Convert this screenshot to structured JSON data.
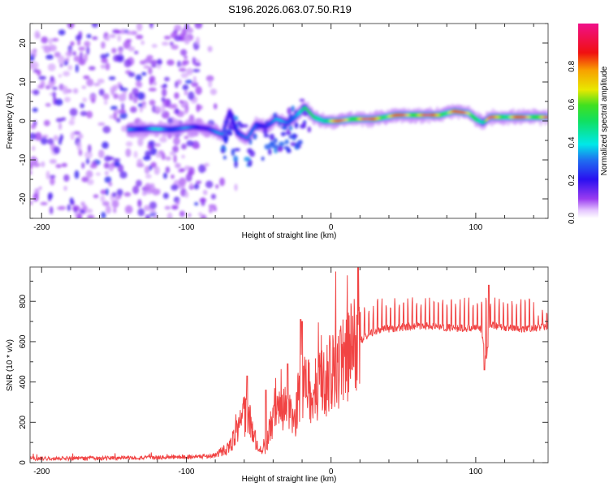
{
  "title": "S196.2026.063.07.50.R19",
  "chart_data": [
    {
      "type": "heatmap",
      "name": "spectrogram",
      "xlabel": "Height of straight line (km)",
      "ylabel": "Frequency (Hz)",
      "xlim": [
        -208,
        150
      ],
      "ylim": [
        -25,
        25
      ],
      "xticks": [
        -200,
        -100,
        0,
        100
      ],
      "xtick_labels": [
        "-200",
        "-100",
        "0",
        "100"
      ],
      "yticks": [
        -20,
        -10,
        0,
        10,
        20
      ],
      "ytick_labels": [
        "-20",
        "-10",
        "0",
        "10",
        "20"
      ],
      "colorbar": {
        "label": "Normalized spectral amplitude",
        "range": [
          0,
          1
        ],
        "ticks": [
          0.0,
          0.2,
          0.4,
          0.6,
          0.8
        ],
        "tick_labels": [
          "0.0",
          "0.2",
          "0.4",
          "0.6",
          "0.8"
        ],
        "colormap": "rainbow (white-purple-blue-cyan-green-yellow-red-magenta)"
      },
      "ridge": {
        "description": "dominant carrier frequency vs height",
        "points": [
          [
            -140,
            -2.2,
            0.35
          ],
          [
            -125,
            -2.0,
            0.4
          ],
          [
            -110,
            -2.2,
            0.4
          ],
          [
            -95,
            -1.5,
            0.3
          ],
          [
            -85,
            -2.0,
            0.3
          ],
          [
            -75,
            -3.5,
            0.35
          ],
          [
            -70,
            2.5,
            0.3
          ],
          [
            -65,
            -3.0,
            0.35
          ],
          [
            -58,
            -4.5,
            0.3
          ],
          [
            -52,
            -1.0,
            0.35
          ],
          [
            -45,
            -1.5,
            0.35
          ],
          [
            -38,
            0.5,
            0.35
          ],
          [
            -30,
            -0.5,
            0.4
          ],
          [
            -25,
            1.0,
            0.5
          ],
          [
            -18,
            3.5,
            0.55
          ],
          [
            -12,
            1.0,
            0.6
          ],
          [
            -5,
            0.0,
            0.75
          ],
          [
            5,
            0.0,
            0.85
          ],
          [
            15,
            0.5,
            0.9
          ],
          [
            30,
            0.5,
            0.95
          ],
          [
            45,
            1.5,
            0.9
          ],
          [
            60,
            1.5,
            0.95
          ],
          [
            75,
            1.5,
            0.9
          ],
          [
            85,
            2.5,
            0.95
          ],
          [
            95,
            2.0,
            0.9
          ],
          [
            100,
            0.5,
            0.85
          ],
          [
            105,
            -0.5,
            0.5
          ],
          [
            110,
            1.0,
            0.85
          ],
          [
            125,
            1.0,
            0.9
          ],
          [
            140,
            1.0,
            0.9
          ],
          [
            150,
            1.0,
            0.9
          ]
        ]
      },
      "noise_region": {
        "x_range": [
          -208,
          -80
        ],
        "level": [
          0.05,
          0.2
        ]
      }
    },
    {
      "type": "line",
      "name": "snr",
      "xlabel": "Height of straight line (km)",
      "ylabel": "SNR (10 * v/v)",
      "xlim": [
        -208,
        150
      ],
      "ylim": [
        0,
        970
      ],
      "xticks": [
        -200,
        -100,
        0,
        100
      ],
      "xtick_labels": [
        "-200",
        "-100",
        "0",
        "100"
      ],
      "yticks": [
        0,
        200,
        400,
        600,
        800
      ],
      "ytick_labels": [
        "0",
        "200",
        "400",
        "600",
        "800"
      ],
      "color": "#f03030",
      "series": [
        {
          "name": "SNR",
          "envelope": [
            [
              -208,
              20
            ],
            [
              -150,
              22
            ],
            [
              -120,
              25
            ],
            [
              -90,
              30
            ],
            [
              -80,
              35
            ],
            [
              -70,
              80
            ],
            [
              -62,
              200
            ],
            [
              -58,
              250
            ],
            [
              -54,
              150
            ],
            [
              -50,
              60
            ],
            [
              -45,
              80
            ],
            [
              -40,
              200
            ],
            [
              -35,
              280
            ],
            [
              -30,
              250
            ],
            [
              -25,
              200
            ],
            [
              -22,
              350
            ],
            [
              -18,
              380
            ],
            [
              -14,
              350
            ],
            [
              -10,
              360
            ],
            [
              -5,
              400
            ],
            [
              0,
              430
            ],
            [
              5,
              470
            ],
            [
              10,
              520
            ],
            [
              15,
              570
            ],
            [
              20,
              600
            ],
            [
              25,
              630
            ],
            [
              30,
              650
            ],
            [
              40,
              665
            ],
            [
              60,
              680
            ],
            [
              80,
              670
            ],
            [
              100,
              665
            ],
            [
              104,
              660
            ],
            [
              107,
              500
            ],
            [
              110,
              680
            ],
            [
              130,
              660
            ],
            [
              150,
              670
            ]
          ],
          "spikes": {
            "x_range": [
              20,
              150
            ],
            "spacing_km": 3,
            "peak": [
              760,
              820
            ]
          },
          "notable_peaks": [
            [
              -58,
              430
            ],
            [
              -45,
              360
            ],
            [
              -30,
              490
            ],
            [
              -21,
              710
            ],
            [
              -20,
              700
            ],
            [
              106,
              960
            ],
            [
              109,
              880
            ]
          ],
          "notable_dips": [
            [
              106,
              460
            ]
          ]
        }
      ]
    }
  ]
}
